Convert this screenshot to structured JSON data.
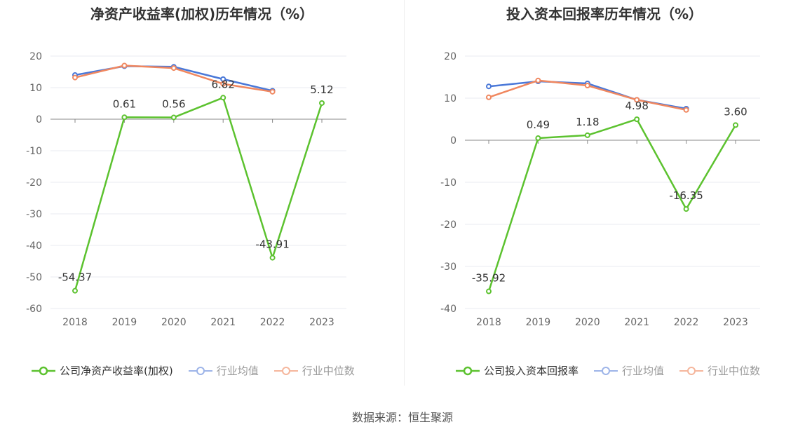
{
  "source": "数据来源：恒生聚源",
  "colors": {
    "company": "#5cc22f",
    "industry_avg": "#4a78d8",
    "industry_median": "#f0875f"
  },
  "chart_data": [
    {
      "type": "line",
      "title": "净资产收益率(加权)历年情况（%）",
      "categories": [
        "2018",
        "2019",
        "2020",
        "2021",
        "2022",
        "2023"
      ],
      "ylim": [
        -60,
        20
      ],
      "yticks": [
        20,
        10,
        0,
        -10,
        -20,
        -30,
        -40,
        -50,
        -60
      ],
      "grid": true,
      "legend_position": "bottom",
      "series": [
        {
          "name": "公司净资产收益率(加权)",
          "color": "#5cc22f",
          "values": [
            -54.37,
            0.61,
            0.56,
            6.82,
            -43.91,
            5.12
          ],
          "labels": [
            "-54.37",
            "0.61",
            "0.56",
            "6.82",
            "-43.91",
            "5.12"
          ]
        },
        {
          "name": "行业均值",
          "color": "#4a78d8",
          "values": [
            14.0,
            16.8,
            16.6,
            12.7,
            9.0,
            null
          ]
        },
        {
          "name": "行业中位数",
          "color": "#f0875f",
          "values": [
            13.2,
            17.0,
            16.2,
            11.2,
            8.7,
            null
          ]
        }
      ]
    },
    {
      "type": "line",
      "title": "投入资本回报率历年情况（%）",
      "categories": [
        "2018",
        "2019",
        "2020",
        "2021",
        "2022",
        "2023"
      ],
      "ylim": [
        -40,
        20
      ],
      "yticks": [
        20,
        10,
        0,
        -10,
        -20,
        -30,
        -40
      ],
      "grid": true,
      "legend_position": "bottom",
      "series": [
        {
          "name": "公司投入资本回报率",
          "color": "#5cc22f",
          "values": [
            -35.92,
            0.49,
            1.18,
            4.98,
            -16.35,
            3.6
          ],
          "labels": [
            "-35.92",
            "0.49",
            "1.18",
            "4.98",
            "-16.35",
            "3.60"
          ]
        },
        {
          "name": "行业均值",
          "color": "#4a78d8",
          "values": [
            12.8,
            14.0,
            13.5,
            9.6,
            7.5,
            null
          ]
        },
        {
          "name": "行业中位数",
          "color": "#f0875f",
          "values": [
            10.2,
            14.2,
            13.0,
            9.6,
            7.2,
            null
          ]
        }
      ]
    }
  ]
}
